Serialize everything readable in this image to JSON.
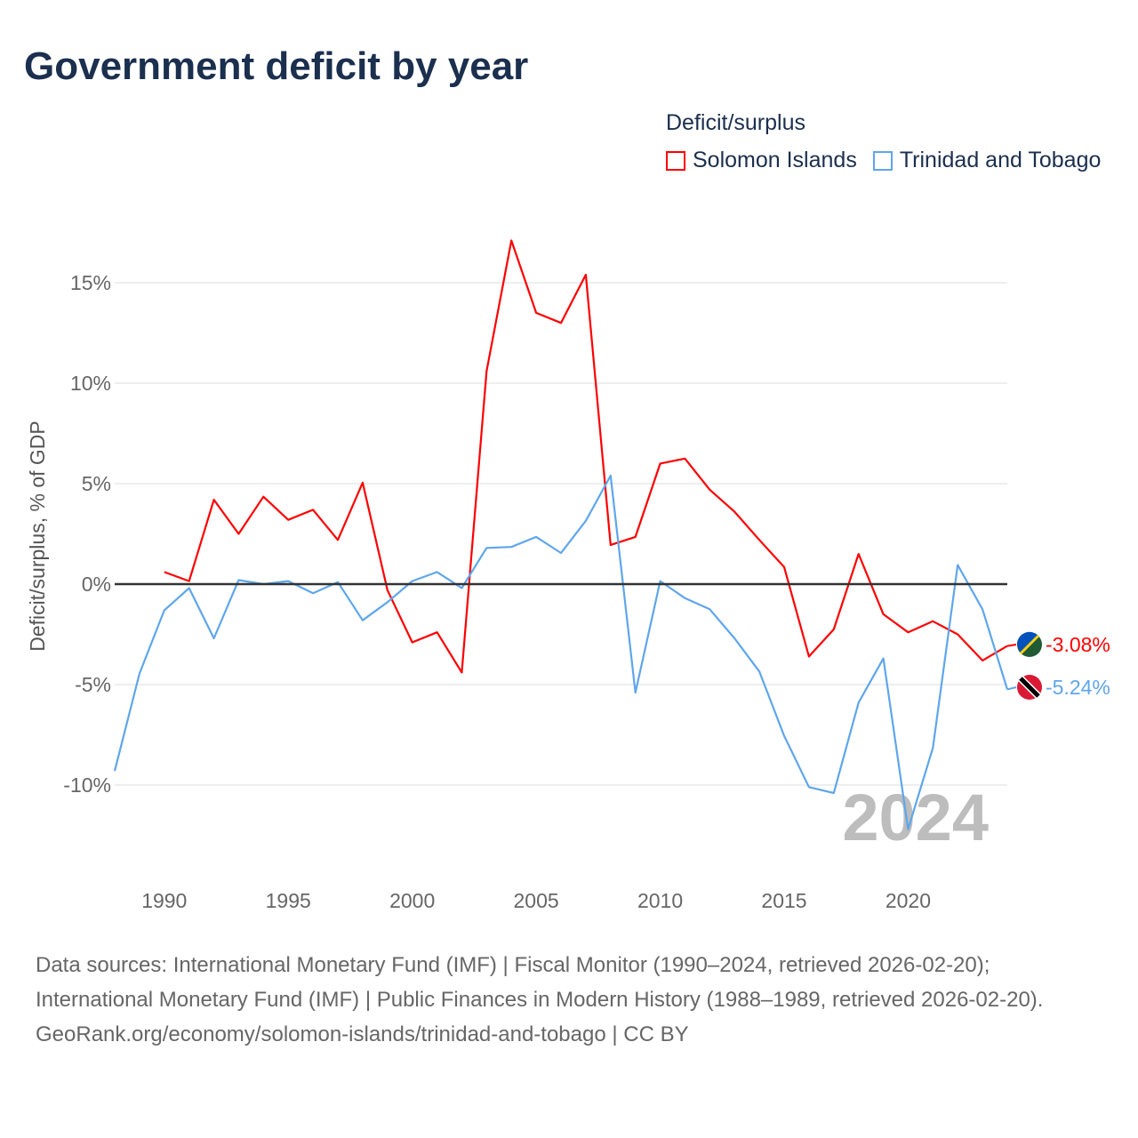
{
  "chart_data": {
    "type": "line",
    "title": "Government deficit by year",
    "legend_title": "Deficit/surplus",
    "legend_placement": "top-right",
    "ylabel": "Deficit/surplus, % of GDP",
    "xlabel": "",
    "ylim": [
      -13.5,
      18
    ],
    "xlim": [
      1988,
      2024
    ],
    "y_ticks": [
      15,
      10,
      5,
      0,
      -5,
      -10
    ],
    "y_tick_labels": [
      "15%",
      "10%",
      "5%",
      "0%",
      "-5%",
      "-10%"
    ],
    "x_ticks": [
      1990,
      1995,
      2000,
      2005,
      2010,
      2015,
      2020
    ],
    "x_tick_labels": [
      "1990",
      "1995",
      "2000",
      "2005",
      "2010",
      "2015",
      "2020"
    ],
    "year_watermark": "2024",
    "series": [
      {
        "name": "Solomon Islands",
        "color": "#ff0000",
        "end_label": "-3.08%",
        "x": [
          1990,
          1991,
          1992,
          1993,
          1994,
          1995,
          1996,
          1997,
          1998,
          1999,
          2000,
          2001,
          2002,
          2003,
          2004,
          2005,
          2006,
          2007,
          2008,
          2009,
          2010,
          2011,
          2012,
          2013,
          2014,
          2015,
          2016,
          2017,
          2018,
          2019,
          2020,
          2021,
          2022,
          2023,
          2024
        ],
        "values": [
          0.6,
          0.15,
          4.2,
          2.5,
          4.35,
          3.2,
          3.7,
          2.2,
          5.05,
          -0.3,
          -2.9,
          -2.4,
          -4.4,
          10.6,
          17.1,
          13.5,
          13.0,
          15.4,
          1.95,
          2.35,
          6.0,
          6.25,
          4.7,
          3.6,
          2.2,
          0.85,
          -3.6,
          -2.25,
          1.5,
          -1.5,
          -2.4,
          -1.85,
          -2.5,
          -3.8,
          -3.08
        ]
      },
      {
        "name": "Trinidad and Tobago",
        "color": "#5ea6ec",
        "end_label": "-5.24%",
        "x": [
          1988,
          1989,
          1990,
          1991,
          1992,
          1993,
          1994,
          1995,
          1996,
          1997,
          1998,
          1999,
          2000,
          2001,
          2002,
          2003,
          2004,
          2005,
          2006,
          2007,
          2008,
          2009,
          2010,
          2011,
          2012,
          2013,
          2014,
          2015,
          2016,
          2017,
          2018,
          2019,
          2020,
          2021,
          2022,
          2023,
          2024
        ],
        "values": [
          -9.3,
          -4.45,
          -1.3,
          -0.2,
          -2.7,
          0.2,
          0,
          0.15,
          -0.45,
          0.1,
          -1.8,
          -0.9,
          0.15,
          0.6,
          -0.2,
          1.8,
          1.85,
          2.35,
          1.55,
          3.15,
          5.4,
          -5.4,
          0.15,
          -0.7,
          -1.25,
          -2.7,
          -4.35,
          -7.55,
          -10.1,
          -10.4,
          -5.9,
          -3.7,
          -12.2,
          -8.15,
          0.95,
          -1.25,
          -5.24
        ]
      }
    ]
  },
  "sources": {
    "line1": "Data sources: International Monetary Fund (IMF) | Fiscal Monitor (1990–2024, retrieved 2026-02-20); International Monetary Fund (IMF) | Public Finances in Modern History (1988–1989, retrieved 2026-02-20).",
    "line2": "GeoRank.org/economy/solomon-islands/trinidad-and-tobago | CC BY"
  }
}
